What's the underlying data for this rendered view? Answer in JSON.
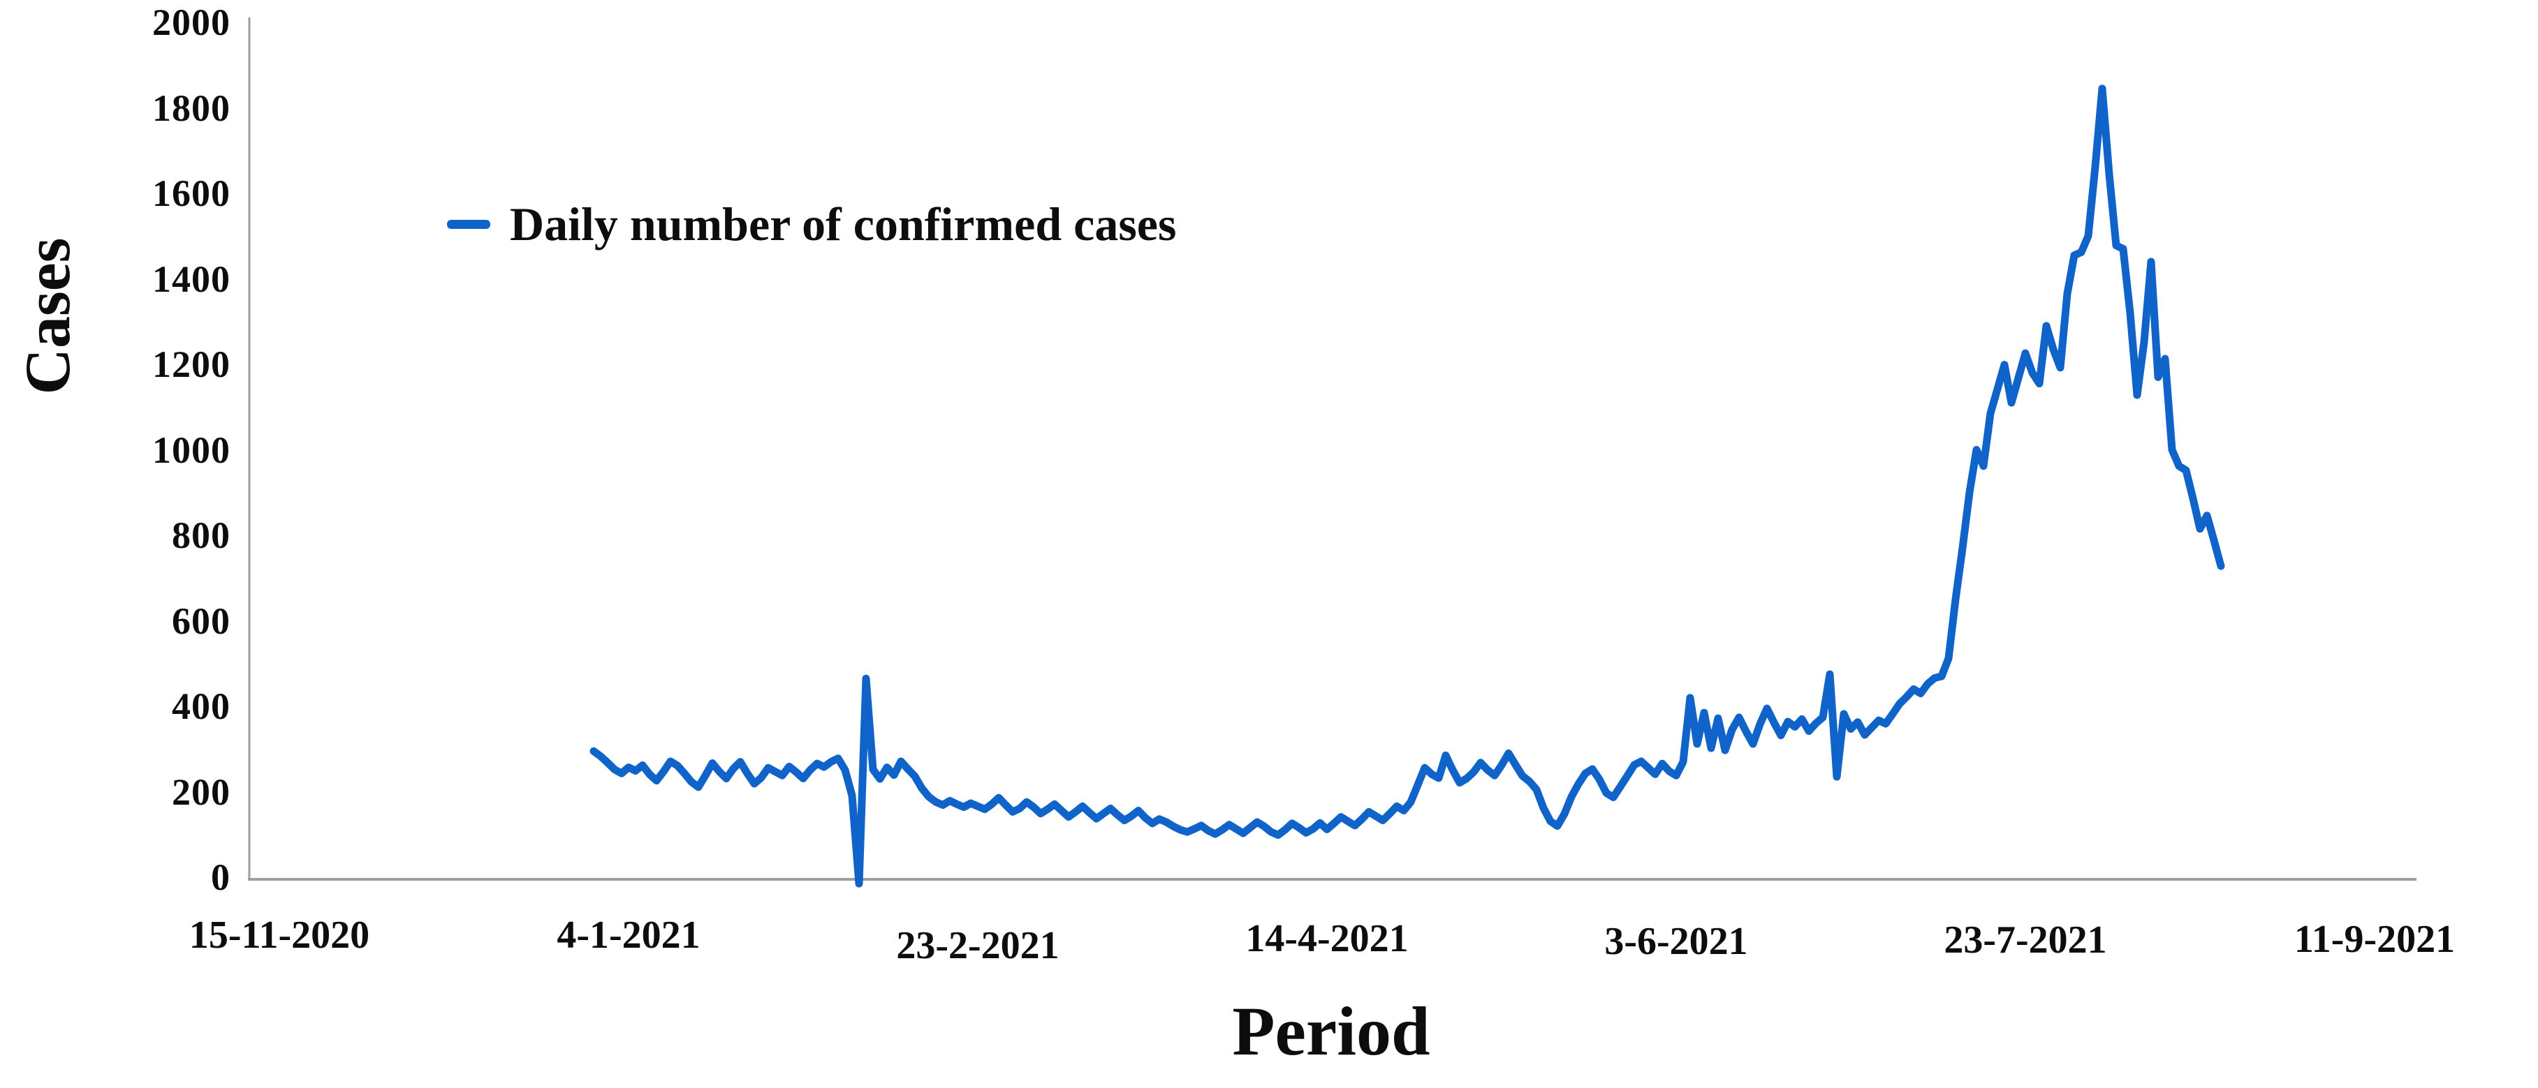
{
  "chart_data": {
    "type": "line",
    "title": "",
    "xlabel": "Period",
    "ylabel": "Cases",
    "legend_label": "Daily number of confirmed cases",
    "legend_position": "upper-left-inside",
    "grid": false,
    "line_color": "#1064c9",
    "axis_color": "#9e9e9e",
    "text_color": "#0d0d0d",
    "ylim": [
      0,
      2000
    ],
    "y_ticks": [
      0,
      200,
      400,
      600,
      800,
      1000,
      1200,
      1400,
      1600,
      1800,
      2000
    ],
    "x_ticks": [
      {
        "label": "15-11-2020",
        "day_offset": -45,
        "dy": 0
      },
      {
        "label": "4-1-2021",
        "day_offset": 5,
        "dy": 0
      },
      {
        "label": "23-2-2021",
        "day_offset": 55,
        "dy": 15
      },
      {
        "label": "14-4-2021",
        "day_offset": 105,
        "dy": 5
      },
      {
        "label": "3-6-2021",
        "day_offset": 155,
        "dy": 9
      },
      {
        "label": "23-7-2021",
        "day_offset": 205,
        "dy": 7
      },
      {
        "label": "11-9-2021",
        "day_offset": 255,
        "dy": 6
      }
    ],
    "series": [
      {
        "name": "Daily number of confirmed cases",
        "start_date": "30-12-2020",
        "frequency": "daily",
        "values": [
          295,
          283,
          268,
          252,
          243,
          257,
          249,
          262,
          241,
          226,
          247,
          271,
          261,
          243,
          223,
          211,
          238,
          267,
          247,
          231,
          254,
          270,
          243,
          219,
          233,
          256,
          247,
          238,
          259,
          246,
          231,
          251,
          266,
          258,
          270,
          278,
          251,
          191,
          -15,
          465,
          252,
          230,
          257,
          239,
          271,
          253,
          236,
          208,
          188,
          176,
          169,
          179,
          171,
          164,
          173,
          166,
          159,
          171,
          186,
          169,
          153,
          161,
          176,
          164,
          149,
          159,
          171,
          156,
          141,
          153,
          166,
          151,
          137,
          149,
          161,
          146,
          133,
          143,
          156,
          139,
          126,
          136,
          129,
          119,
          111,
          106,
          113,
          121,
          109,
          101,
          111,
          123,
          113,
          103,
          116,
          129,
          119,
          106,
          99,
          111,
          126,
          116,
          104,
          113,
          127,
          112,
          126,
          141,
          131,
          121,
          136,
          153,
          143,
          133,
          149,
          166,
          156,
          176,
          216,
          256,
          241,
          232,
          285,
          251,
          221,
          231,
          246,
          268,
          251,
          238,
          262,
          290,
          263,
          237,
          224,
          205,
          162,
          131,
          120,
          148,
          188,
          218,
          243,
          253,
          229,
          197,
          187,
          212,
          237,
          263,
          271,
          256,
          241,
          266,
          248,
          238,
          270,
          420,
          312,
          385,
          302,
          372,
          297,
          345,
          374,
          341,
          312,
          358,
          395,
          362,
          332,
          364,
          352,
          370,
          342,
          360,
          374,
          475,
          235,
          382,
          347,
          363,
          333,
          350,
          367,
          359,
          382,
          406,
          422,
          440,
          430,
          452,
          466,
          470,
          512,
          650,
          770,
          900,
          1000,
          962,
          1085,
          1142,
          1199,
          1110,
          1168,
          1226,
          1180,
          1155,
          1290,
          1235,
          1192,
          1365,
          1455,
          1462,
          1500,
          1662,
          1845,
          1645,
          1478,
          1470,
          1320,
          1128,
          1252,
          1440,
          1170,
          1213,
          1000,
          962,
          952,
          886,
          815,
          846,
          788,
          728
        ]
      }
    ]
  }
}
